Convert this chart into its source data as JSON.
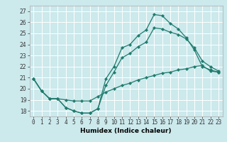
{
  "title": "",
  "xlabel": "Humidex (Indice chaleur)",
  "xlim": [
    -0.5,
    23.5
  ],
  "ylim": [
    17.5,
    27.5
  ],
  "xticks": [
    0,
    1,
    2,
    3,
    4,
    5,
    6,
    7,
    8,
    9,
    10,
    11,
    12,
    13,
    14,
    15,
    16,
    17,
    18,
    19,
    20,
    21,
    22,
    23
  ],
  "yticks": [
    18,
    19,
    20,
    21,
    22,
    23,
    24,
    25,
    26,
    27
  ],
  "bg_color": "#cce9ec",
  "line_color": "#1e7b6e",
  "grid_color": "#ffffff",
  "line1_x": [
    0,
    1,
    2,
    3,
    4,
    5,
    6,
    7,
    8,
    9,
    10,
    11,
    12,
    13,
    14,
    15,
    16,
    17,
    18,
    19,
    20,
    21,
    22,
    23
  ],
  "line1_y": [
    20.9,
    19.8,
    19.1,
    19.1,
    18.3,
    18.0,
    17.8,
    17.8,
    18.2,
    20.9,
    22.0,
    23.7,
    24.0,
    24.8,
    25.3,
    26.7,
    26.6,
    25.9,
    25.4,
    24.6,
    23.5,
    22.0,
    21.7,
    21.5
  ],
  "line2_x": [
    0,
    1,
    2,
    3,
    4,
    5,
    6,
    7,
    8,
    9,
    10,
    11,
    12,
    13,
    14,
    15,
    16,
    17,
    18,
    19,
    20,
    21,
    22,
    23
  ],
  "line2_y": [
    20.9,
    19.8,
    19.1,
    19.1,
    18.3,
    18.0,
    17.8,
    17.8,
    18.2,
    20.3,
    21.5,
    22.8,
    23.2,
    23.8,
    24.2,
    25.5,
    25.4,
    25.1,
    24.9,
    24.5,
    23.7,
    22.5,
    22.0,
    21.6
  ],
  "line3_x": [
    0,
    1,
    2,
    3,
    4,
    5,
    6,
    7,
    8,
    9,
    10,
    11,
    12,
    13,
    14,
    15,
    16,
    17,
    18,
    19,
    20,
    21,
    22,
    23
  ],
  "line3_y": [
    20.9,
    19.8,
    19.1,
    19.1,
    19.0,
    18.9,
    18.9,
    18.9,
    19.3,
    19.7,
    20.0,
    20.3,
    20.5,
    20.8,
    21.0,
    21.2,
    21.4,
    21.5,
    21.7,
    21.8,
    22.0,
    22.1,
    21.6,
    21.5
  ],
  "xlabel_fontsize": 6.5,
  "tick_fontsize": 5.5,
  "linewidth": 0.9,
  "markersize": 2.2
}
